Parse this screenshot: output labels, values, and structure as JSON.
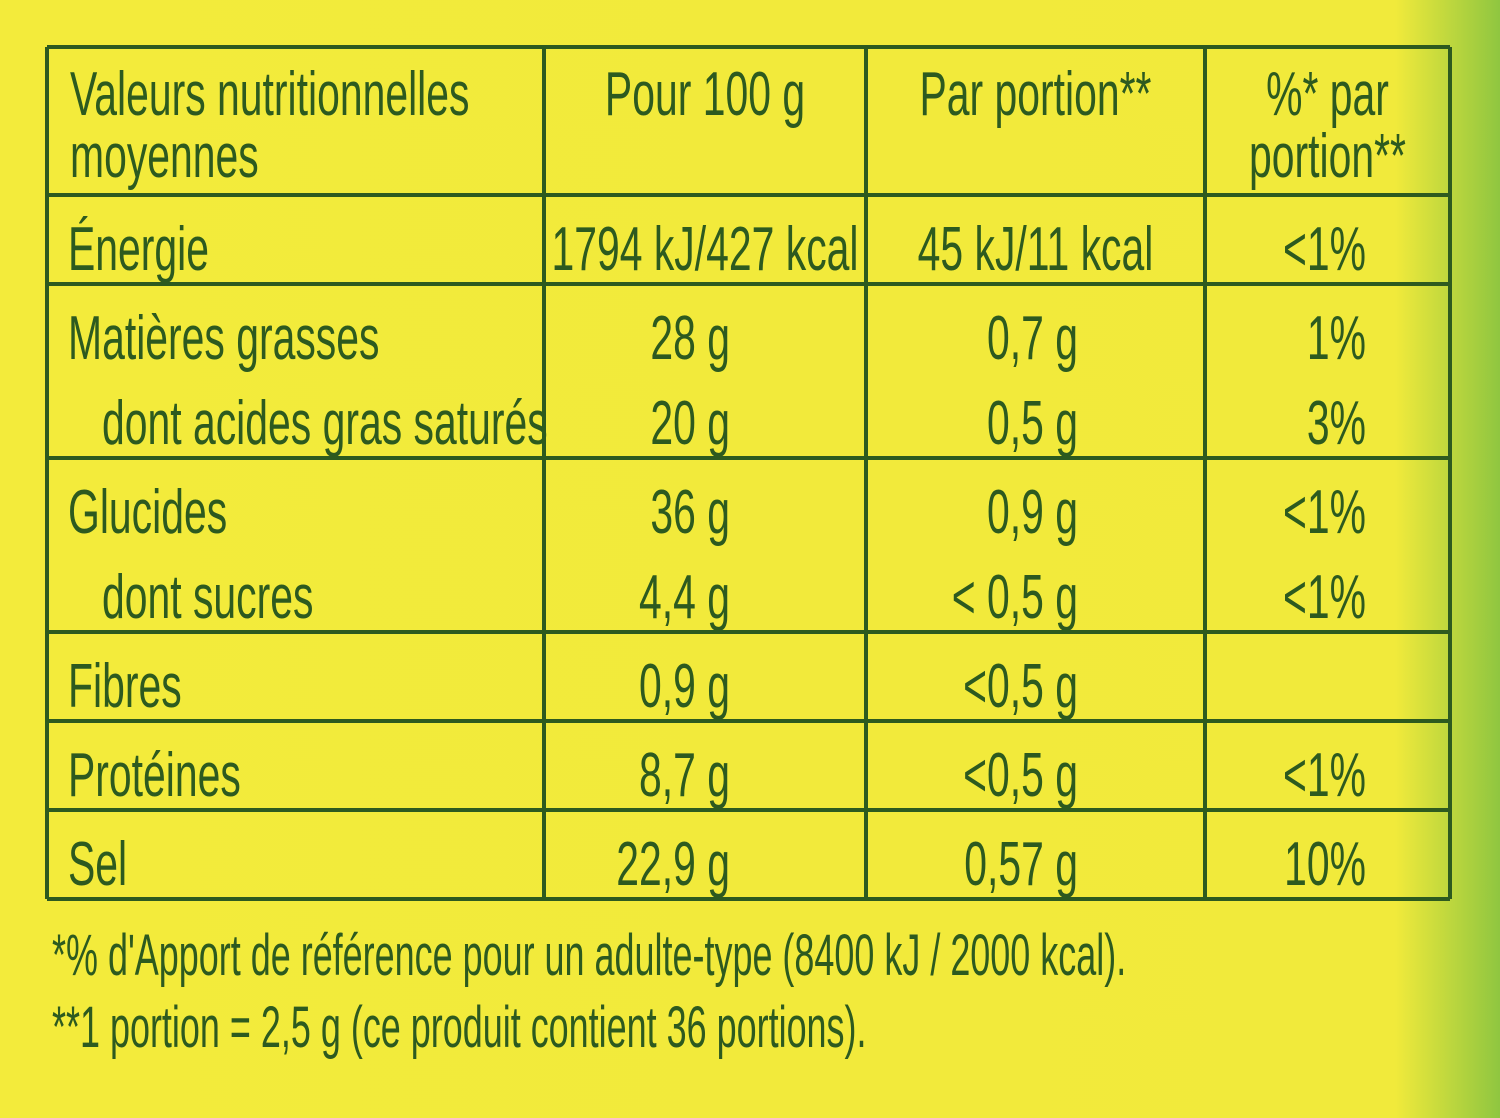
{
  "table": {
    "header": [
      [
        "Valeurs nutritionnelles",
        "moyennes"
      ],
      [
        "Pour 100 g"
      ],
      [
        "Par portion**"
      ],
      [
        "%* par",
        "portion**"
      ]
    ],
    "groups": [
      [
        [
          "Énergie",
          "1794 kJ/427 kcal",
          "45 kJ/11 kcal",
          "<1%"
        ]
      ],
      [
        [
          "Matières grasses",
          "28 g",
          "0,7 g",
          "1%"
        ],
        [
          "dont acides gras saturés",
          "20 g",
          "0,5 g",
          "3%"
        ]
      ],
      [
        [
          "Glucides",
          "36 g",
          "0,9 g",
          "<1%"
        ],
        [
          "dont sucres",
          "4,4 g",
          "< 0,5 g",
          "<1%"
        ]
      ],
      [
        [
          "Fibres",
          "0,9 g",
          "<0,5 g",
          null
        ]
      ],
      [
        [
          "Protéines",
          "8,7 g",
          "<0,5 g",
          "<1%"
        ]
      ],
      [
        [
          "Sel",
          "22,9 g",
          "0,57 g",
          "10%"
        ]
      ]
    ]
  },
  "footnotes": [
    "*% d'Apport de référence pour un adulte-type (8400 kJ / 2000 kcal).",
    "**1 portion = 2,5 g (ce produit contient 36 portions)."
  ]
}
